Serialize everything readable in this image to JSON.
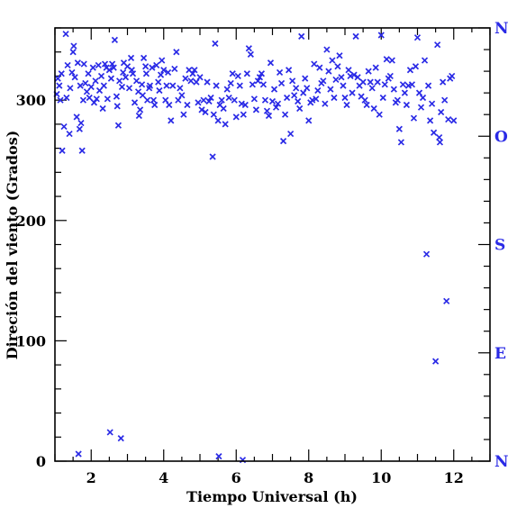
{
  "chart_data": {
    "type": "scatter",
    "xlabel": "Tiempo Universal (h)",
    "ylabel": "Direción del viento (Grados)",
    "xlim": [
      1,
      13
    ],
    "ylim": [
      0,
      360
    ],
    "x_ticks": [
      2,
      4,
      6,
      8,
      10,
      12
    ],
    "y_ticks": [
      0,
      100,
      200,
      300
    ],
    "right_axis": {
      "labels": [
        "N",
        "E",
        "S",
        "O",
        "N"
      ],
      "values": [
        0,
        90,
        180,
        270,
        360
      ],
      "color": "#2a2ae6"
    },
    "marker": "x",
    "marker_color": "#2a2ae6",
    "series": [
      {
        "points": [
          [
            1.05,
            305
          ],
          [
            1.08,
            318
          ],
          [
            1.12,
            312
          ],
          [
            1.15,
            300
          ],
          [
            1.18,
            322
          ],
          [
            1.2,
            258
          ],
          [
            1.25,
            278
          ],
          [
            1.3,
            355
          ],
          [
            1.32,
            302
          ],
          [
            1.35,
            329
          ],
          [
            1.4,
            272
          ],
          [
            1.42,
            310
          ],
          [
            1.47,
            323
          ],
          [
            1.5,
            340
          ],
          [
            1.52,
            345
          ],
          [
            1.55,
            319
          ],
          [
            1.6,
            286
          ],
          [
            1.63,
            331
          ],
          [
            1.65,
            6
          ],
          [
            1.68,
            276
          ],
          [
            1.7,
            312
          ],
          [
            1.72,
            281
          ],
          [
            1.75,
            258
          ],
          [
            1.78,
            300
          ],
          [
            1.8,
            330
          ],
          [
            1.84,
            314
          ],
          [
            1.88,
            307
          ],
          [
            1.92,
            322
          ],
          [
            1.95,
            302
          ],
          [
            2.0,
            311
          ],
          [
            2.05,
            327
          ],
          [
            2.08,
            298
          ],
          [
            2.12,
            316
          ],
          [
            2.15,
            301
          ],
          [
            2.2,
            329
          ],
          [
            2.23,
            308
          ],
          [
            2.28,
            320
          ],
          [
            2.32,
            293
          ],
          [
            2.35,
            312
          ],
          [
            2.38,
            330
          ],
          [
            2.42,
            327
          ],
          [
            2.45,
            301
          ],
          [
            2.5,
            325
          ],
          [
            2.52,
            24
          ],
          [
            2.55,
            318
          ],
          [
            2.58,
            330
          ],
          [
            2.62,
            327
          ],
          [
            2.65,
            350
          ],
          [
            2.7,
            303
          ],
          [
            2.72,
            295
          ],
          [
            2.75,
            279
          ],
          [
            2.78,
            316
          ],
          [
            2.82,
            19
          ],
          [
            2.85,
            311
          ],
          [
            2.88,
            323
          ],
          [
            2.9,
            331
          ],
          [
            2.95,
            319
          ],
          [
            3.0,
            328
          ],
          [
            3.05,
            310
          ],
          [
            3.1,
            335
          ],
          [
            3.12,
            325
          ],
          [
            3.15,
            322
          ],
          [
            3.2,
            298
          ],
          [
            3.25,
            316
          ],
          [
            3.3,
            307
          ],
          [
            3.32,
            287
          ],
          [
            3.35,
            292
          ],
          [
            3.4,
            313
          ],
          [
            3.42,
            304
          ],
          [
            3.45,
            335
          ],
          [
            3.5,
            328
          ],
          [
            3.52,
            322
          ],
          [
            3.55,
            300
          ],
          [
            3.6,
            310
          ],
          [
            3.62,
            312
          ],
          [
            3.68,
            327
          ],
          [
            3.72,
            300
          ],
          [
            3.75,
            296
          ],
          [
            3.8,
            329
          ],
          [
            3.85,
            315
          ],
          [
            3.88,
            308
          ],
          [
            3.92,
            321
          ],
          [
            3.95,
            333
          ],
          [
            4.0,
            325
          ],
          [
            4.05,
            300
          ],
          [
            4.08,
            312
          ],
          [
            4.12,
            323
          ],
          [
            4.15,
            296
          ],
          [
            4.2,
            283
          ],
          [
            4.25,
            312
          ],
          [
            4.3,
            326
          ],
          [
            4.35,
            340
          ],
          [
            4.4,
            300
          ],
          [
            4.45,
            310
          ],
          [
            4.5,
            304
          ],
          [
            4.55,
            288
          ],
          [
            4.6,
            318
          ],
          [
            4.65,
            296
          ],
          [
            4.7,
            325
          ],
          [
            4.75,
            316
          ],
          [
            4.8,
            322
          ],
          [
            4.85,
            325
          ],
          [
            4.9,
            315
          ],
          [
            4.95,
            298
          ],
          [
            5.0,
            319
          ],
          [
            5.05,
            292
          ],
          [
            5.1,
            300
          ],
          [
            5.15,
            290
          ],
          [
            5.2,
            315
          ],
          [
            5.25,
            299
          ],
          [
            5.3,
            302
          ],
          [
            5.35,
            253
          ],
          [
            5.38,
            288
          ],
          [
            5.42,
            347
          ],
          [
            5.45,
            312
          ],
          [
            5.5,
            283
          ],
          [
            5.52,
            4
          ],
          [
            5.55,
            296
          ],
          [
            5.6,
            300
          ],
          [
            5.65,
            293
          ],
          [
            5.7,
            280
          ],
          [
            5.75,
            309
          ],
          [
            5.8,
            302
          ],
          [
            5.85,
            314
          ],
          [
            5.9,
            322
          ],
          [
            5.95,
            300
          ],
          [
            6.0,
            286
          ],
          [
            6.05,
            320
          ],
          [
            6.1,
            312
          ],
          [
            6.15,
            297
          ],
          [
            6.18,
            1
          ],
          [
            6.2,
            288
          ],
          [
            6.25,
            296
          ],
          [
            6.3,
            322
          ],
          [
            6.35,
            343
          ],
          [
            6.4,
            338
          ],
          [
            6.45,
            313
          ],
          [
            6.5,
            301
          ],
          [
            6.55,
            292
          ],
          [
            6.6,
            316
          ],
          [
            6.65,
            319
          ],
          [
            6.7,
            322
          ],
          [
            6.75,
            313
          ],
          [
            6.8,
            300
          ],
          [
            6.85,
            291
          ],
          [
            6.9,
            287
          ],
          [
            6.95,
            331
          ],
          [
            7.0,
            299
          ],
          [
            7.05,
            309
          ],
          [
            7.1,
            294
          ],
          [
            7.15,
            297
          ],
          [
            7.2,
            323
          ],
          [
            7.25,
            314
          ],
          [
            7.3,
            266
          ],
          [
            7.35,
            288
          ],
          [
            7.4,
            302
          ],
          [
            7.45,
            325
          ],
          [
            7.5,
            272
          ],
          [
            7.55,
            316
          ],
          [
            7.6,
            304
          ],
          [
            7.65,
            310
          ],
          [
            7.7,
            299
          ],
          [
            7.75,
            293
          ],
          [
            7.8,
            353
          ],
          [
            7.85,
            306
          ],
          [
            7.9,
            318
          ],
          [
            7.95,
            310
          ],
          [
            8.0,
            283
          ],
          [
            8.05,
            298
          ],
          [
            8.1,
            300
          ],
          [
            8.15,
            330
          ],
          [
            8.2,
            301
          ],
          [
            8.25,
            308
          ],
          [
            8.3,
            327
          ],
          [
            8.35,
            314
          ],
          [
            8.4,
            316
          ],
          [
            8.45,
            297
          ],
          [
            8.5,
            342
          ],
          [
            8.55,
            324
          ],
          [
            8.6,
            309
          ],
          [
            8.65,
            333
          ],
          [
            8.7,
            302
          ],
          [
            8.75,
            317
          ],
          [
            8.8,
            328
          ],
          [
            8.85,
            337
          ],
          [
            8.9,
            319
          ],
          [
            8.95,
            312
          ],
          [
            9.0,
            302
          ],
          [
            9.05,
            296
          ],
          [
            9.1,
            325
          ],
          [
            9.15,
            320
          ],
          [
            9.2,
            306
          ],
          [
            9.25,
            321
          ],
          [
            9.3,
            353
          ],
          [
            9.35,
            319
          ],
          [
            9.4,
            312
          ],
          [
            9.45,
            303
          ],
          [
            9.5,
            315
          ],
          [
            9.55,
            300
          ],
          [
            9.6,
            296
          ],
          [
            9.65,
            324
          ],
          [
            9.7,
            315
          ],
          [
            9.75,
            310
          ],
          [
            9.8,
            293
          ],
          [
            9.85,
            327
          ],
          [
            9.9,
            315
          ],
          [
            9.95,
            288
          ],
          [
            10.0,
            354
          ],
          [
            10.05,
            302
          ],
          [
            10.1,
            313
          ],
          [
            10.15,
            334
          ],
          [
            10.2,
            318
          ],
          [
            10.25,
            320
          ],
          [
            10.3,
            333
          ],
          [
            10.35,
            309
          ],
          [
            10.4,
            298
          ],
          [
            10.45,
            300
          ],
          [
            10.5,
            276
          ],
          [
            10.55,
            265
          ],
          [
            10.6,
            313
          ],
          [
            10.65,
            306
          ],
          [
            10.7,
            296
          ],
          [
            10.75,
            312
          ],
          [
            10.8,
            325
          ],
          [
            10.85,
            313
          ],
          [
            10.9,
            285
          ],
          [
            10.95,
            328
          ],
          [
            11.0,
            352
          ],
          [
            11.05,
            306
          ],
          [
            11.1,
            294
          ],
          [
            11.15,
            302
          ],
          [
            11.2,
            333
          ],
          [
            11.25,
            172
          ],
          [
            11.3,
            312
          ],
          [
            11.35,
            283
          ],
          [
            11.4,
            297
          ],
          [
            11.45,
            273
          ],
          [
            11.5,
            83
          ],
          [
            11.55,
            346
          ],
          [
            11.6,
            269
          ],
          [
            11.62,
            265
          ],
          [
            11.65,
            290
          ],
          [
            11.7,
            315
          ],
          [
            11.75,
            300
          ],
          [
            11.8,
            133
          ],
          [
            11.85,
            284
          ],
          [
            11.9,
            318
          ],
          [
            11.95,
            320
          ],
          [
            12.0,
            283
          ]
        ]
      }
    ]
  }
}
